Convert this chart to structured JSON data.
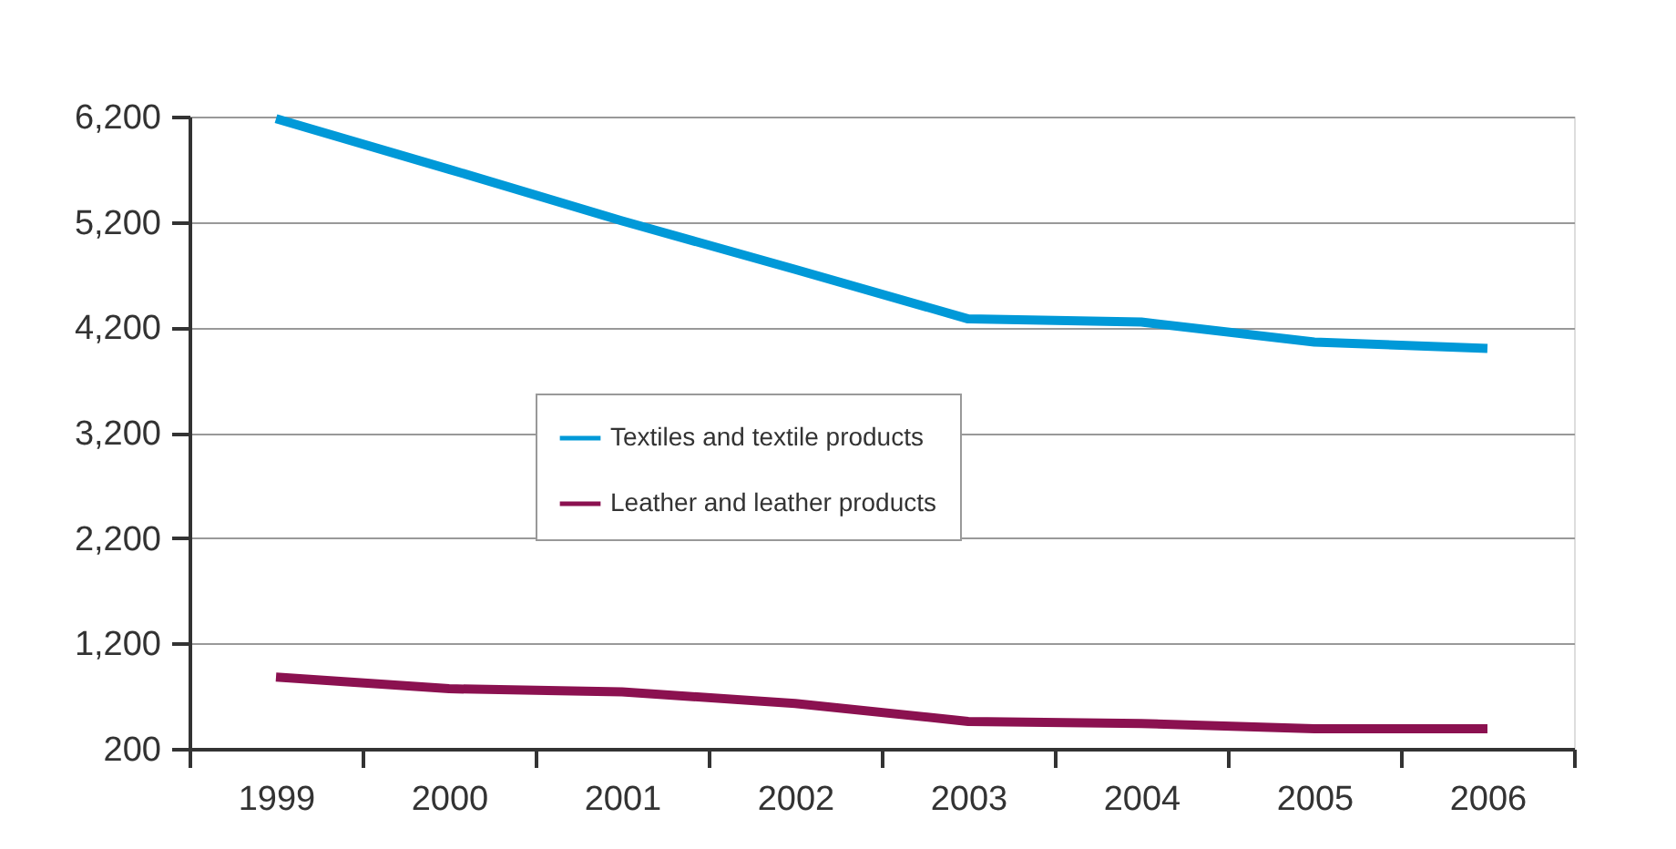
{
  "chart_data": {
    "type": "line",
    "categories": [
      "1999",
      "2000",
      "2001",
      "2002",
      "2003",
      "2004",
      "2005",
      "2006"
    ],
    "series": [
      {
        "name": "Textiles and textile products",
        "color": "#0099d8",
        "values": [
          6180,
          5700,
          5210,
          4750,
          4280,
          4250,
          4060,
          4000
        ]
      },
      {
        "name": "Leather and leather products",
        "color": "#8b1150",
        "values": [
          880,
          770,
          740,
          630,
          460,
          440,
          390,
          390
        ]
      }
    ],
    "ylim": [
      200,
      6200
    ],
    "yticks": [
      {
        "value": 200,
        "label": "200"
      },
      {
        "value": 1200,
        "label": "1,200"
      },
      {
        "value": 2200,
        "label": "2,200"
      },
      {
        "value": 3200,
        "label": "3,200"
      },
      {
        "value": 4200,
        "label": "4,200"
      },
      {
        "value": 5200,
        "label": "5,200"
      },
      {
        "value": 6200,
        "label": "6,200"
      }
    ],
    "grid": "y",
    "legend": "center",
    "marker": "none",
    "line_style": "solid"
  }
}
